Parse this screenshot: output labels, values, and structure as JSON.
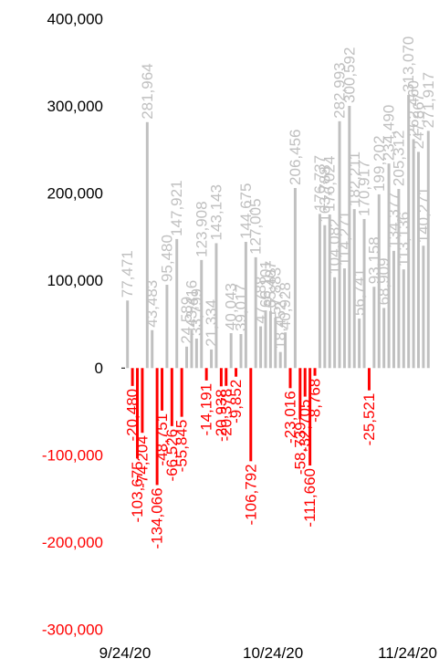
{
  "chart_data": {
    "type": "bar",
    "title": "",
    "xlabel": "",
    "ylabel": "",
    "ylim": [
      -300000,
      400000
    ],
    "y_ticks": [
      {
        "value": 400000,
        "label": "400,000"
      },
      {
        "value": 300000,
        "label": "300,000"
      },
      {
        "value": 200000,
        "label": "200,000"
      },
      {
        "value": 100000,
        "label": "100,000"
      },
      {
        "value": 0,
        "label": "0"
      },
      {
        "value": -100000,
        "label": "-100,000"
      },
      {
        "value": -200000,
        "label": "-200,000"
      },
      {
        "value": -300000,
        "label": "-300,000"
      }
    ],
    "x_start": "2020-09-24",
    "x_ticks": [
      {
        "date": "2020-09-24",
        "label": "9/24/20"
      },
      {
        "date": "2020-10-24",
        "label": "10/24/20"
      },
      {
        "date": "2020-11-24",
        "label": "11/24/20"
      }
    ],
    "grid": false,
    "legend": "none",
    "colors": {
      "positive": "#c0c0c0",
      "negative": "#ff0000",
      "axis": "#000000"
    },
    "points": [
      {
        "date": "2020-09-24",
        "value": 77471,
        "label": "77,471"
      },
      {
        "date": "2020-09-25",
        "value": -20480,
        "label": "-20,480"
      },
      {
        "date": "2020-09-26",
        "value": -103675,
        "label": "-103,675"
      },
      {
        "date": "2020-09-27",
        "value": -74204,
        "label": "-74,204"
      },
      {
        "date": "2020-09-28",
        "value": 281964,
        "label": "281,964"
      },
      {
        "date": "2020-09-29",
        "value": 43483,
        "label": "43,483"
      },
      {
        "date": "2020-09-30",
        "value": -134066,
        "label": "-134,066"
      },
      {
        "date": "2020-10-01",
        "value": -48751,
        "label": "-48,751"
      },
      {
        "date": "2020-10-02",
        "value": 95480,
        "label": "95,480"
      },
      {
        "date": "2020-10-03",
        "value": -66526,
        "label": "-66,526"
      },
      {
        "date": "2020-10-04",
        "value": 147921,
        "label": "147,921"
      },
      {
        "date": "2020-10-05",
        "value": -55845,
        "label": "-55,845"
      },
      {
        "date": "2020-10-06",
        "value": 24589,
        "label": "24,589"
      },
      {
        "date": "2020-10-07",
        "value": 43416,
        "label": "43,416"
      },
      {
        "date": "2020-10-08",
        "value": 33799,
        "label": "33,799"
      },
      {
        "date": "2020-10-09",
        "value": 123908,
        "label": "123,908"
      },
      {
        "date": "2020-10-10",
        "value": -14191,
        "label": "-14,191"
      },
      {
        "date": "2020-10-11",
        "value": 21334,
        "label": "21,334"
      },
      {
        "date": "2020-10-12",
        "value": 143143,
        "label": "143,143"
      },
      {
        "date": "2020-10-13",
        "value": -20938,
        "label": "-20,938"
      },
      {
        "date": "2020-10-14",
        "value": -20378,
        "label": "-20,378"
      },
      {
        "date": "2020-10-15",
        "value": 40043,
        "label": "40,043"
      },
      {
        "date": "2020-10-16",
        "value": -9852,
        "label": "-9,852"
      },
      {
        "date": "2020-10-17",
        "value": 39017,
        "label": "39,017"
      },
      {
        "date": "2020-10-18",
        "value": 144675,
        "label": "144,675"
      },
      {
        "date": "2020-10-19",
        "value": -106792,
        "label": "-106,792"
      },
      {
        "date": "2020-10-20",
        "value": 127005,
        "label": "127,005"
      },
      {
        "date": "2020-10-21",
        "value": 47788,
        "label": "47,788"
      },
      {
        "date": "2020-10-22",
        "value": 66101,
        "label": "66,101"
      },
      {
        "date": "2020-10-23",
        "value": 65407,
        "label": "65,407"
      },
      {
        "date": "2020-10-24",
        "value": 57883,
        "label": "57,883"
      },
      {
        "date": "2020-10-25",
        "value": 18452,
        "label": "18,452"
      },
      {
        "date": "2020-10-26",
        "value": 40928,
        "label": "40,928"
      },
      {
        "date": "2020-10-27",
        "value": -23016,
        "label": "-23,016"
      },
      {
        "date": "2020-10-28",
        "value": 206456,
        "label": "206,456"
      },
      {
        "date": "2020-10-29",
        "value": -58739,
        "label": "-58,739"
      },
      {
        "date": "2020-10-30",
        "value": -32705,
        "label": "-32,705"
      },
      {
        "date": "2020-10-31",
        "value": -111660,
        "label": "-111,660"
      },
      {
        "date": "2020-11-01",
        "value": -8768,
        "label": "-8,768"
      },
      {
        "date": "2020-11-02",
        "value": 176737,
        "label": "176,737"
      },
      {
        "date": "2020-11-03",
        "value": 163788,
        "label": "163,788"
      },
      {
        "date": "2020-11-04",
        "value": 176024,
        "label": "176,024"
      },
      {
        "date": "2020-11-05",
        "value": 104082,
        "label": "104,082"
      },
      {
        "date": "2020-11-06",
        "value": 282993,
        "label": "282,993"
      },
      {
        "date": "2020-11-07",
        "value": 114271,
        "label": "114,271"
      },
      {
        "date": "2020-11-08",
        "value": 300592,
        "label": "300,592"
      },
      {
        "date": "2020-11-09",
        "value": 182211,
        "label": "182,211"
      },
      {
        "date": "2020-11-10",
        "value": 56741,
        "label": "56,741"
      },
      {
        "date": "2020-11-11",
        "value": 170917,
        "label": "170,917"
      },
      {
        "date": "2020-11-12",
        "value": -25521,
        "label": "-25,521"
      },
      {
        "date": "2020-11-13",
        "value": 93158,
        "label": "93,158"
      },
      {
        "date": "2020-11-14",
        "value": 199202,
        "label": "199,202"
      },
      {
        "date": "2020-11-15",
        "value": 68909,
        "label": "68,909"
      },
      {
        "date": "2020-11-16",
        "value": 234490,
        "label": "234,490"
      },
      {
        "date": "2020-11-17",
        "value": 134377,
        "label": "134,377"
      },
      {
        "date": "2020-11-18",
        "value": 205312,
        "label": "205,312"
      },
      {
        "date": "2020-11-19",
        "value": 113136,
        "label": "113,136"
      },
      {
        "date": "2020-11-20",
        "value": 313070,
        "label": "313,070"
      },
      {
        "date": "2020-11-21",
        "value": 262460,
        "label": "262,460"
      },
      {
        "date": "2020-11-22",
        "value": 247867,
        "label": "247,867"
      },
      {
        "date": "2020-11-23",
        "value": 140271,
        "label": "140,271"
      },
      {
        "date": "2020-11-24",
        "value": 271917,
        "label": "271,917"
      }
    ]
  }
}
